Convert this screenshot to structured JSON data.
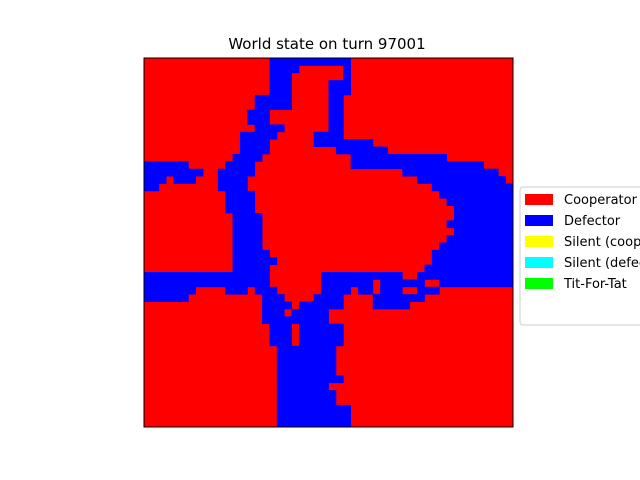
{
  "chart_data": {
    "type": "heatmap",
    "title": "World state on turn 97001",
    "xlabel": "",
    "ylabel": "",
    "grid": false,
    "legend_placement": "right",
    "grid_size": [
      50,
      50
    ],
    "legend": [
      {
        "label": "Cooperator",
        "color": "#ff0000"
      },
      {
        "label": "Defector",
        "color": "#0000ff"
      },
      {
        "label": "Silent (cooperator)",
        "color": "#ffff00"
      },
      {
        "label": "Silent (defector)",
        "color": "#00ffff"
      },
      {
        "label": "Tit-For-Tat",
        "color": "#00ff00"
      }
    ],
    "default_state": "Cooperator",
    "defector_rows": [
      [
        [
          17,
          27
        ]
      ],
      [
        [
          17,
          20
        ],
        [
          27,
          27
        ]
      ],
      [
        [
          17,
          19
        ],
        [
          27,
          27
        ]
      ],
      [
        [
          17,
          19
        ],
        [
          25,
          27
        ]
      ],
      [
        [
          17,
          19
        ],
        [
          25,
          27
        ]
      ],
      [
        [
          15,
          19
        ],
        [
          25,
          26
        ]
      ],
      [
        [
          15,
          19
        ],
        [
          25,
          26
        ]
      ],
      [
        [
          14,
          16
        ],
        [
          25,
          26
        ]
      ],
      [
        [
          14,
          16
        ],
        [
          25,
          26
        ]
      ],
      [
        [
          15,
          18
        ],
        [
          25,
          26
        ]
      ],
      [
        [
          13,
          17
        ],
        [
          23,
          26
        ]
      ],
      [
        [
          13,
          16
        ],
        [
          23,
          30
        ]
      ],
      [
        [
          13,
          16
        ],
        [
          26,
          32
        ]
      ],
      [
        [
          12,
          15
        ],
        [
          28,
          40
        ]
      ],
      [
        [
          0,
          5
        ],
        [
          11,
          14
        ],
        [
          28,
          45
        ]
      ],
      [
        [
          0,
          7
        ],
        [
          10,
          14
        ],
        [
          35,
          47
        ]
      ],
      [
        [
          0,
          2
        ],
        [
          4,
          6
        ],
        [
          10,
          13
        ],
        [
          37,
          48
        ]
      ],
      [
        [
          0,
          1
        ],
        [
          10,
          13
        ],
        [
          39,
          49
        ]
      ],
      [
        [
          11,
          14
        ],
        [
          40,
          49
        ]
      ],
      [
        [
          11,
          14
        ],
        [
          41,
          49
        ]
      ],
      [
        [
          11,
          14
        ],
        [
          42,
          49
        ]
      ],
      [
        [
          12,
          15
        ],
        [
          42,
          49
        ]
      ],
      [
        [
          12,
          15
        ],
        [
          41,
          49
        ]
      ],
      [
        [
          12,
          15
        ],
        [
          42,
          49
        ]
      ],
      [
        [
          12,
          15
        ],
        [
          41,
          49
        ]
      ],
      [
        [
          12,
          15
        ],
        [
          40,
          49
        ]
      ],
      [
        [
          12,
          16
        ],
        [
          39,
          49
        ]
      ],
      [
        [
          12,
          17
        ],
        [
          39,
          49
        ]
      ],
      [
        [
          12,
          16
        ],
        [
          38,
          49
        ]
      ],
      [
        [
          0,
          16
        ],
        [
          24,
          34
        ],
        [
          37,
          49
        ]
      ],
      [
        [
          0,
          16
        ],
        [
          24,
          30
        ],
        [
          32,
          37
        ],
        [
          40,
          49
        ]
      ],
      [
        [
          0,
          6
        ],
        [
          11,
          13
        ],
        [
          15,
          17
        ],
        [
          24,
          27
        ],
        [
          29,
          30
        ],
        [
          32,
          34
        ],
        [
          37,
          39
        ]
      ],
      [
        [
          0,
          5
        ],
        [
          16,
          18
        ],
        [
          23,
          26
        ],
        [
          31,
          37
        ]
      ],
      [
        [
          16,
          19
        ],
        [
          21,
          26
        ],
        [
          31,
          35
        ]
      ],
      [
        [
          16,
          18
        ],
        [
          20,
          24
        ]
      ],
      [
        [
          16,
          24
        ]
      ],
      [
        [
          17,
          19
        ],
        [
          21,
          26
        ]
      ],
      [
        [
          17,
          19
        ],
        [
          21,
          26
        ]
      ],
      [
        [
          17,
          19
        ],
        [
          21,
          26
        ]
      ],
      [
        [
          18,
          25
        ]
      ],
      [
        [
          18,
          25
        ]
      ],
      [
        [
          18,
          25
        ]
      ],
      [
        [
          18,
          25
        ]
      ],
      [
        [
          18,
          26
        ]
      ],
      [
        [
          18,
          24
        ]
      ],
      [
        [
          18,
          25
        ]
      ],
      [
        [
          18,
          25
        ]
      ],
      [
        [
          18,
          27
        ]
      ],
      [
        [
          18,
          27
        ]
      ],
      [
        [
          18,
          27
        ]
      ]
    ]
  }
}
